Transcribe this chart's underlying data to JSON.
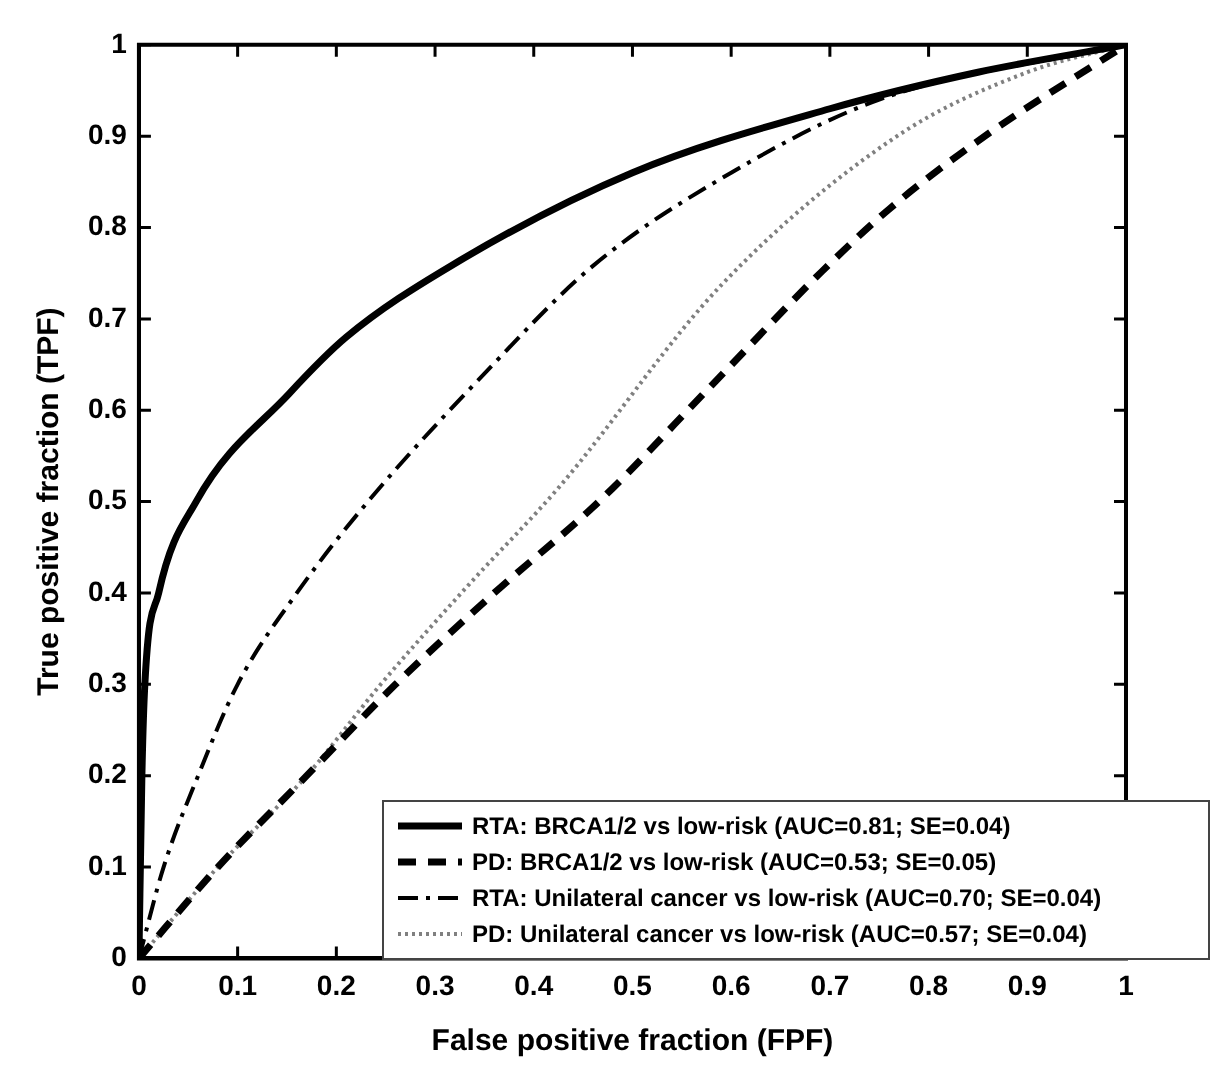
{
  "chart_data": {
    "type": "line",
    "xlabel": "False positive fraction (FPF)",
    "ylabel": "True positive fraction (TPF)",
    "xlim": [
      0,
      1
    ],
    "ylim": [
      0,
      1
    ],
    "xticks": [
      0,
      0.1,
      0.2,
      0.3,
      0.4,
      0.5,
      0.6,
      0.7,
      0.8,
      0.9,
      1
    ],
    "yticks": [
      0,
      0.1,
      0.2,
      0.3,
      0.4,
      0.5,
      0.6,
      0.7,
      0.8,
      0.9,
      1
    ],
    "grid": false,
    "legend": "bottom right",
    "marker": "none",
    "series": [
      {
        "name": "RTA: BRCA1/2 vs low-risk (AUC=0.81; SE=0.04)",
        "color": "#000000",
        "line_style": "solid",
        "x": [
          0,
          0.003,
          0.006,
          0.02,
          0.058,
          0.152,
          0.21,
          0.316,
          0.5,
          0.7,
          0.85,
          1
        ],
        "values": [
          0,
          0.2,
          0.3,
          0.4,
          0.5,
          0.618,
          0.68,
          0.758,
          0.86,
          0.93,
          0.97,
          1
        ]
      },
      {
        "name": "PD: BRCA1/2 vs low-risk (AUC=0.53; SE=0.05)",
        "color": "#000000",
        "line_style": "dashed",
        "x": [
          0,
          0.08,
          0.17,
          0.26,
          0.36,
          0.466,
          0.58,
          0.692,
          0.761,
          0.857,
          1
        ],
        "values": [
          0,
          0.1,
          0.2,
          0.3,
          0.4,
          0.5,
          0.627,
          0.752,
          0.821,
          0.9,
          1
        ]
      },
      {
        "name": "RTA: Unilateral cancer vs low-risk (AUC=0.70; SE=0.04)",
        "color": "#000000",
        "line_style": "dashdot",
        "x": [
          0,
          0.025,
          0.06,
          0.1,
          0.16,
          0.232,
          0.35,
          0.46,
          0.6,
          0.75,
          1
        ],
        "values": [
          0,
          0.1,
          0.2,
          0.3,
          0.4,
          0.5,
          0.64,
          0.758,
          0.86,
          0.94,
          1
        ]
      },
      {
        "name": "PD: Unilateral cancer vs low-risk (AUC=0.57; SE=0.04)",
        "color": "#808080",
        "line_style": "dotted",
        "x": [
          0,
          0.08,
          0.17,
          0.245,
          0.335,
          0.425,
          0.59,
          0.768,
          0.9,
          1
        ],
        "values": [
          0,
          0.1,
          0.2,
          0.3,
          0.41,
          0.515,
          0.737,
          0.9,
          0.97,
          1
        ]
      }
    ]
  }
}
